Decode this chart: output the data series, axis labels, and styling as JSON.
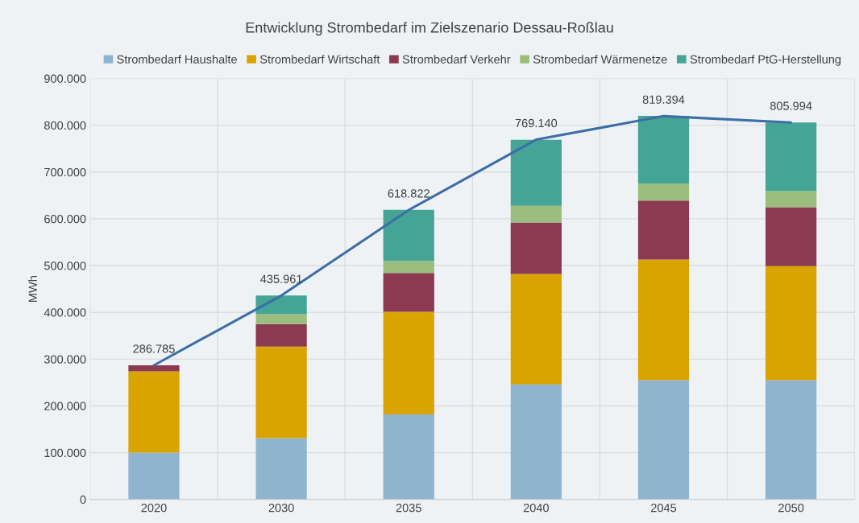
{
  "chart_data": {
    "type": "bar",
    "title": "Entwicklung Strombedarf im Zielszenario Dessau-Roßlau",
    "ylabel": "MWh",
    "categories": [
      "2020",
      "2030",
      "2035",
      "2040",
      "2045",
      "2050"
    ],
    "stacked": true,
    "series": [
      {
        "name": "Strombedarf Haushalte",
        "color": "#8fb4cf",
        "values": [
          100000,
          131000,
          182000,
          246000,
          255000,
          255000
        ]
      },
      {
        "name": "Strombedarf Wirtschaft",
        "color": "#d9a300",
        "values": [
          174000,
          196000,
          219000,
          236000,
          258000,
          244000
        ]
      },
      {
        "name": "Strombedarf Verkehr",
        "color": "#8b3a52",
        "values": [
          13000,
          48000,
          83000,
          110000,
          126000,
          126000
        ]
      },
      {
        "name": "Strombedarf Wärmenetze",
        "color": "#9bbd7e",
        "values": [
          0,
          21000,
          26000,
          36000,
          36000,
          34000
        ]
      },
      {
        "name": "Strombedarf PtG-Herstellung",
        "color": "#44a596",
        "values": [
          0,
          40000,
          109000,
          141000,
          145000,
          147000
        ]
      },
      {
        "type": "line",
        "color": "#3d6ea5",
        "values": [
          286785,
          435961,
          618822,
          769140,
          819394,
          805994
        ],
        "value_labels": [
          "286.785",
          "435.961",
          "618.822",
          "769.140",
          "819.394",
          "805.994"
        ]
      }
    ],
    "ylim": [
      0,
      900000
    ],
    "yticks": [
      {
        "value": 0,
        "label": "0"
      },
      {
        "value": 100000,
        "label": "100.000"
      },
      {
        "value": 200000,
        "label": "200.000"
      },
      {
        "value": 300000,
        "label": "300.000"
      },
      {
        "value": 400000,
        "label": "400.000"
      },
      {
        "value": 500000,
        "label": "500.000"
      },
      {
        "value": 600000,
        "label": "600.000"
      },
      {
        "value": 700000,
        "label": "700.000"
      },
      {
        "value": 800000,
        "label": "800.000"
      },
      {
        "value": 900000,
        "label": "900.000"
      }
    ],
    "grid": true,
    "legend": "top"
  }
}
